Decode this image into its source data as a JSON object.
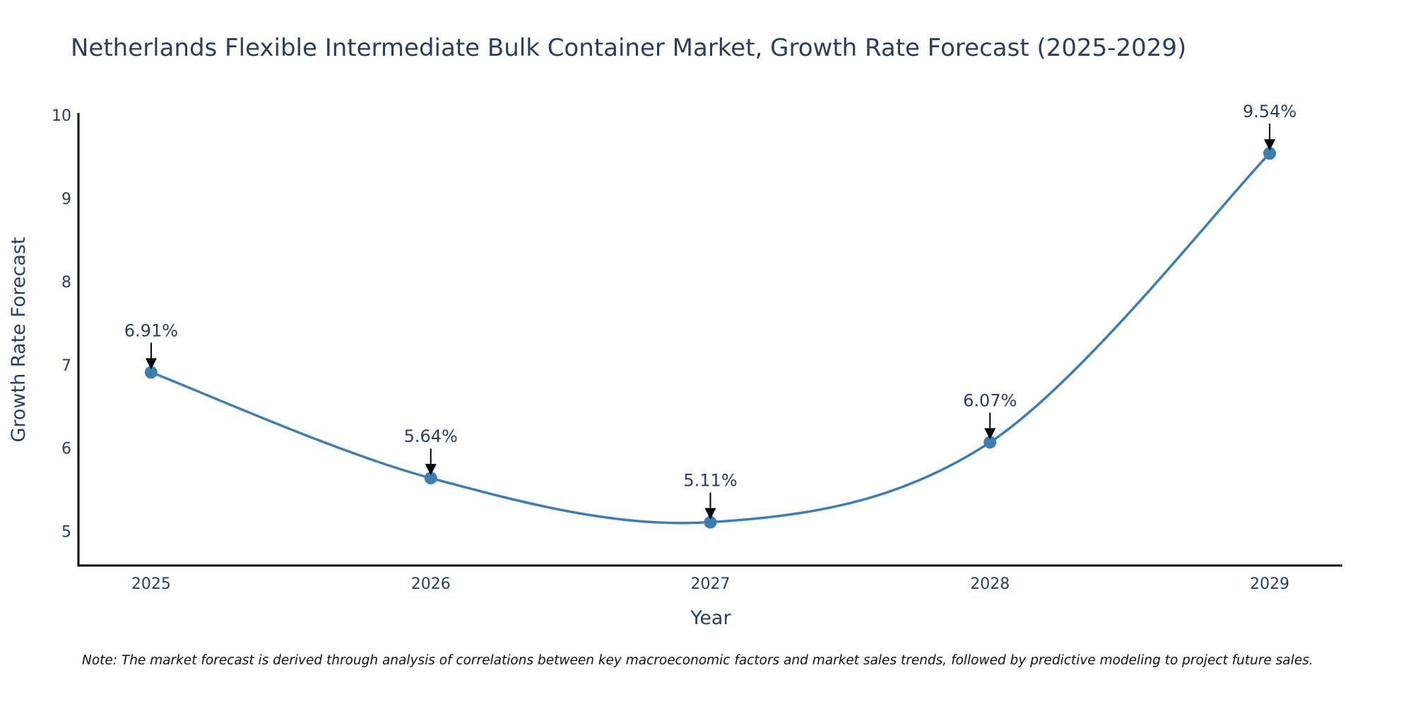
{
  "chart_data": {
    "type": "line",
    "title": "Netherlands Flexible Intermediate Bulk Container Market, Growth Rate Forecast (2025-2029)",
    "xlabel": "Year",
    "ylabel": "Growth Rate Forecast",
    "x": [
      2025,
      2026,
      2027,
      2028,
      2029
    ],
    "x_tick_labels": [
      "2025",
      "2026",
      "2027",
      "2028",
      "2029"
    ],
    "series": [
      {
        "name": "Growth Rate Forecast",
        "values": [
          6.91,
          5.64,
          5.11,
          6.07,
          9.54
        ],
        "color": "#3d7eb0",
        "line_shape": "spline",
        "markers": true
      }
    ],
    "annotations": [
      "6.91%",
      "5.64%",
      "5.11%",
      "6.07%",
      "9.54%"
    ],
    "y_ticks": [
      5,
      6,
      7,
      8,
      9,
      10
    ],
    "y_tick_labels": [
      "5",
      "6",
      "7",
      "8",
      "9",
      "10"
    ],
    "ylim": [
      4.59,
      10.0
    ],
    "xlim": [
      2024.74,
      2029.26
    ],
    "grid": false,
    "legend": "none",
    "note": "Note: The market forecast is derived through analysis of correlations between key macroeconomic factors and market sales trends, followed by predictive modeling to project future sales."
  }
}
